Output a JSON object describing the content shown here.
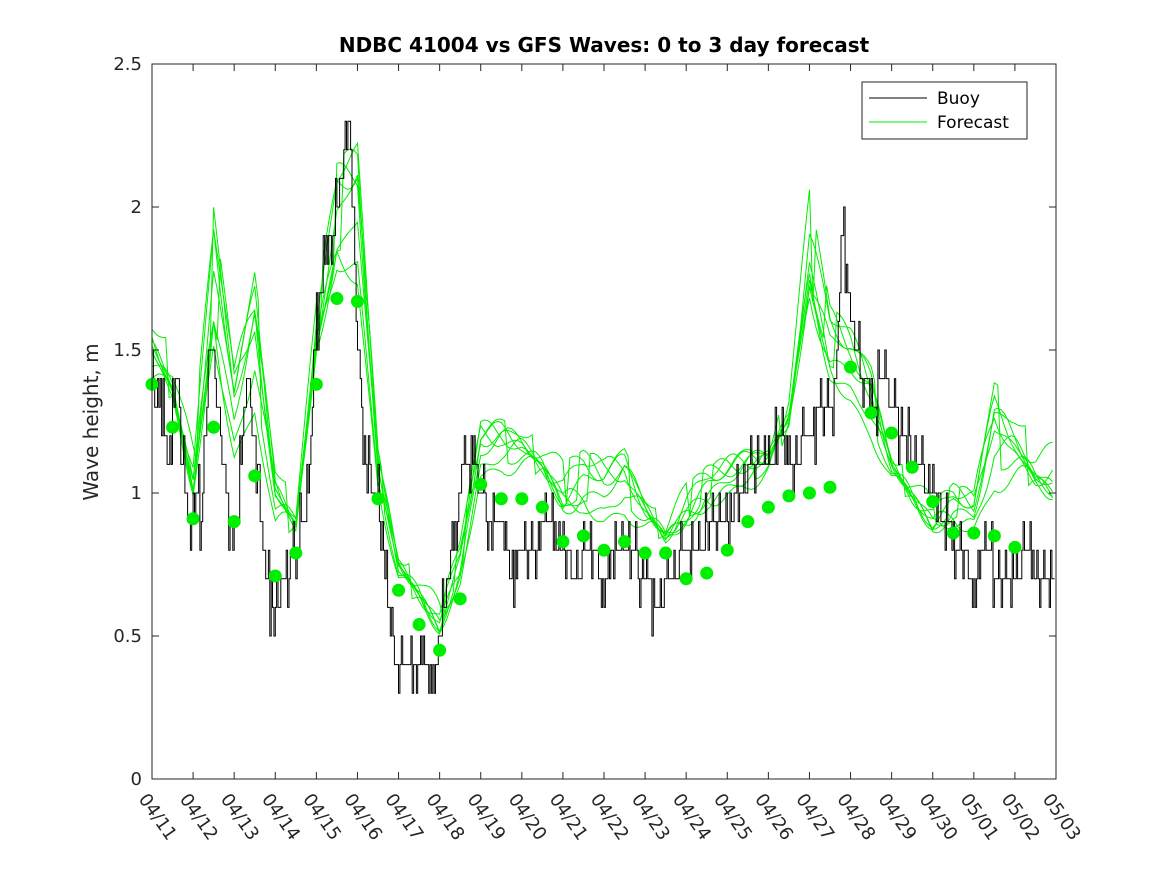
{
  "chart_data": {
    "type": "line",
    "title": "NDBC 41004 vs GFS Waves: 0 to 3 day forecast",
    "xlabel": "",
    "ylabel": "Wave height, m",
    "ylim": [
      0,
      2.5
    ],
    "yticks": [
      "0",
      "0.5",
      "1",
      "1.5",
      "2",
      "2.5"
    ],
    "xlim": [
      "04/11",
      "05/03"
    ],
    "xticks": [
      "04/11",
      "04/12",
      "04/13",
      "04/14",
      "04/15",
      "04/16",
      "04/17",
      "04/18",
      "04/19",
      "04/20",
      "04/21",
      "04/22",
      "04/23",
      "04/24",
      "04/25",
      "04/26",
      "04/27",
      "04/28",
      "04/29",
      "04/30",
      "05/01",
      "05/02",
      "05/03"
    ],
    "grid": false,
    "legend_position": "top-right",
    "colors": {
      "buoy": "#000000",
      "forecast": "#00ee00",
      "markers": "#00ee00"
    },
    "series": [
      {
        "name": "Buoy",
        "style": "step",
        "x_days": [
          0.0,
          0.1,
          0.2,
          0.3,
          0.4,
          0.5,
          0.6,
          0.7,
          0.8,
          0.9,
          1.0,
          1.1,
          1.2,
          1.3,
          1.4,
          1.5,
          1.6,
          1.7,
          1.8,
          1.9,
          2.0,
          2.1,
          2.3,
          2.5,
          2.7,
          2.9,
          3.0,
          3.2,
          3.5,
          3.8,
          4.0,
          4.2,
          4.4,
          4.6,
          4.8,
          4.9,
          5.0,
          5.2,
          5.4,
          5.6,
          5.7,
          5.8,
          6.0,
          6.2,
          6.4,
          6.6,
          6.8,
          7.0,
          7.2,
          7.4,
          7.6,
          7.8,
          8.0,
          8.2,
          8.4,
          8.6,
          8.8,
          9.0,
          9.3,
          9.6,
          10.0,
          10.3,
          10.6,
          11.0,
          11.3,
          11.6,
          12.0,
          12.3,
          12.6,
          13.0,
          13.3,
          13.6,
          14.0,
          14.3,
          14.6,
          15.0,
          15.3,
          15.6,
          16.0,
          16.3,
          16.6,
          16.8,
          17.0,
          17.1,
          17.3,
          17.5,
          17.8,
          18.0,
          18.3,
          18.6,
          19.0,
          19.3,
          19.6,
          20.0,
          20.3,
          20.6,
          21.0,
          21.3,
          21.6,
          22.0
        ],
        "y": [
          1.4,
          1.3,
          1.35,
          1.2,
          1.1,
          1.3,
          1.4,
          1.2,
          1.0,
          0.85,
          0.9,
          1.0,
          0.9,
          1.2,
          1.6,
          1.4,
          1.3,
          1.1,
          1.0,
          0.9,
          0.8,
          1.0,
          1.4,
          1.2,
          0.8,
          0.6,
          0.6,
          0.7,
          0.8,
          1.0,
          1.6,
          1.8,
          1.9,
          2.1,
          2.3,
          1.9,
          1.5,
          1.1,
          1.0,
          0.9,
          0.7,
          0.5,
          0.4,
          0.4,
          0.4,
          0.4,
          0.3,
          0.5,
          0.7,
          0.9,
          1.1,
          1.1,
          1.0,
          0.9,
          0.9,
          0.8,
          0.7,
          0.8,
          0.8,
          0.9,
          0.8,
          0.7,
          0.8,
          0.7,
          0.8,
          0.8,
          0.7,
          0.6,
          0.7,
          0.8,
          0.8,
          0.9,
          0.9,
          1.0,
          1.1,
          1.1,
          1.2,
          1.1,
          1.2,
          1.3,
          1.3,
          1.9,
          1.6,
          1.5,
          1.4,
          1.3,
          1.4,
          1.3,
          1.2,
          1.1,
          1.0,
          0.9,
          0.8,
          0.7,
          0.8,
          0.7,
          0.7,
          0.8,
          0.7,
          0.7
        ]
      },
      {
        "name": "Forecast",
        "style": "lines",
        "x_days": [
          0,
          0.5,
          1,
          1.5,
          2,
          2.5,
          3,
          3.5,
          4,
          4.5,
          5,
          5.5,
          6,
          6.5,
          7,
          7.5,
          8,
          8.5,
          9,
          9.5,
          10,
          10.5,
          11,
          11.5,
          12,
          12.5,
          13,
          13.5,
          14,
          14.5,
          15,
          15.5,
          16,
          16.5,
          17,
          17.5,
          18,
          18.5,
          19,
          19.5,
          20,
          20.5,
          21,
          21.5,
          22
        ],
        "y_min": [
          1.15,
          1.1,
          0.85,
          1.2,
          0.95,
          1.0,
          0.65,
          0.72,
          1.35,
          1.55,
          1.45,
          0.95,
          0.6,
          0.45,
          0.44,
          0.62,
          0.95,
          0.98,
          0.95,
          0.9,
          0.8,
          0.82,
          0.78,
          0.8,
          0.74,
          0.73,
          0.78,
          0.88,
          0.92,
          0.95,
          0.98,
          1.0,
          1.35,
          1.25,
          1.18,
          1.05,
          0.95,
          0.82,
          0.8,
          0.82,
          0.8,
          0.8,
          0.78,
          0.82,
          0.8
        ],
        "y_max": [
          1.4,
          1.3,
          1.0,
          1.6,
          1.2,
          1.4,
          0.9,
          0.85,
          1.5,
          1.85,
          1.85,
          1.05,
          0.7,
          0.6,
          0.52,
          0.72,
          1.1,
          1.12,
          1.1,
          1.05,
          0.95,
          0.98,
          0.95,
          0.98,
          0.88,
          0.82,
          0.9,
          0.98,
          1.02,
          1.05,
          1.08,
          1.2,
          1.7,
          1.45,
          1.38,
          1.25,
          1.05,
          0.95,
          0.88,
          0.92,
          0.9,
          1.1,
          1.05,
          1.0,
          0.98
        ]
      },
      {
        "name": "Forecast markers",
        "style": "markers",
        "x_days": [
          0,
          0.5,
          1,
          1.5,
          2,
          2.5,
          3,
          3.5,
          4,
          4.5,
          5,
          5.5,
          6,
          6.5,
          7,
          7.5,
          8,
          8.5,
          9,
          9.5,
          10,
          10.5,
          11,
          11.5,
          12,
          12.5,
          13,
          13.5,
          14,
          14.5,
          15,
          15.5,
          16,
          16.5,
          17,
          17.5,
          18,
          18.5,
          19,
          19.5,
          20,
          20.5,
          21
        ],
        "y": [
          1.38,
          1.23,
          0.91,
          1.23,
          0.9,
          1.06,
          0.71,
          0.79,
          1.38,
          1.68,
          1.67,
          0.98,
          0.66,
          0.54,
          0.45,
          0.63,
          1.03,
          0.98,
          0.98,
          0.95,
          0.83,
          0.85,
          0.8,
          0.83,
          0.79,
          0.79,
          0.7,
          0.72,
          0.8,
          0.9,
          0.95,
          0.99,
          1.0,
          1.02,
          1.44,
          1.28,
          1.21,
          1.09,
          0.97,
          0.86,
          0.86,
          0.85,
          0.81
        ]
      }
    ],
    "legend": [
      {
        "label": "Buoy",
        "color": "#000000"
      },
      {
        "label": "Forecast",
        "color": "#00ee00"
      }
    ]
  }
}
